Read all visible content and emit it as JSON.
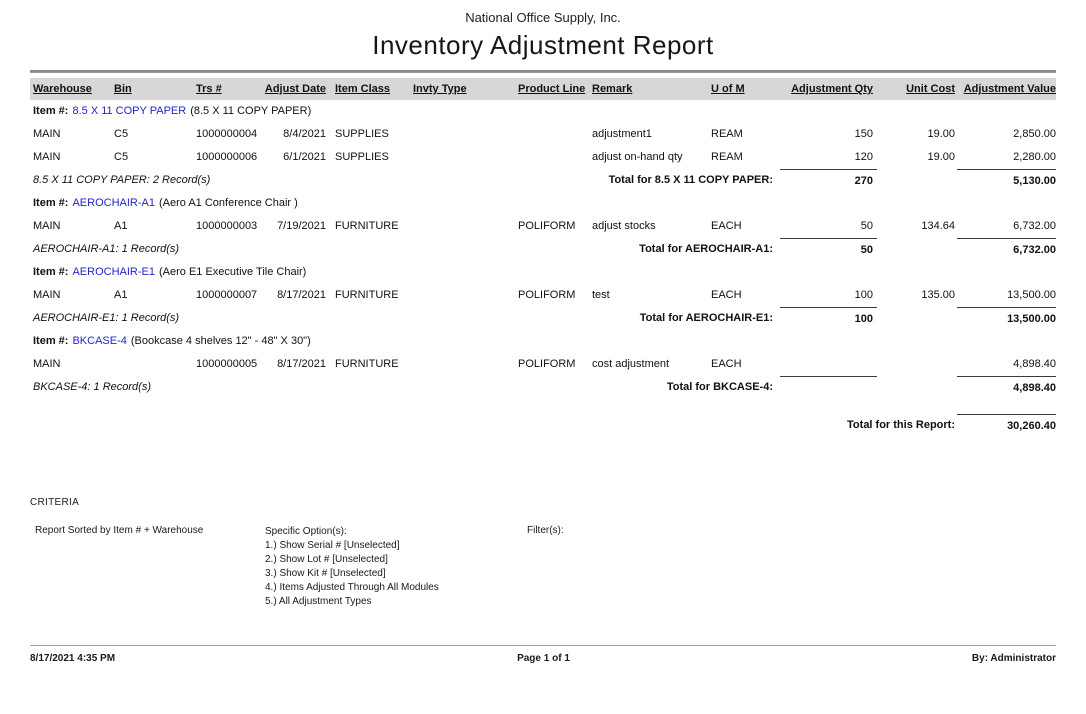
{
  "report": {
    "company": "National Office Supply, Inc.",
    "title": "Inventory Adjustment Report",
    "labels": {
      "item_label": "Item #:"
    },
    "colors": {
      "item_link_blue": "#2323CE",
      "header_band_gray": "#D7D7D7"
    },
    "columns": [
      "Warehouse",
      "Bin",
      "Trs #",
      "Adjust Date",
      "Item Class",
      "Invty Type",
      "Product Line",
      "Remark",
      "U of M",
      "Adjustment Qty",
      "Unit Cost",
      "Adjustment Value"
    ],
    "groups": [
      {
        "item_code": "8.5 X 11 COPY PAPER",
        "item_desc": "(8.5 X 11 COPY PAPER)",
        "rows": [
          {
            "warehouse": "MAIN",
            "bin": "C5",
            "trs": "1000000004",
            "adjust_date": "8/4/2021",
            "item_class": "SUPPLIES",
            "invty_type": "",
            "product_line": "",
            "remark": "adjustment1",
            "uom": "REAM",
            "qty": "150",
            "unit_cost": "19.00",
            "value": "2,850.00"
          },
          {
            "warehouse": "MAIN",
            "bin": "C5",
            "trs": "1000000006",
            "adjust_date": "6/1/2021",
            "item_class": "SUPPLIES",
            "invty_type": "",
            "product_line": "",
            "remark": "adjust on-hand qty",
            "uom": "REAM",
            "qty": "120",
            "unit_cost": "19.00",
            "value": "2,280.00"
          }
        ],
        "records_text": "8.5 X 11 COPY PAPER: 2 Record(s)",
        "total_label": "Total for 8.5 X 11 COPY PAPER:",
        "total_qty": "270",
        "total_value": "5,130.00"
      },
      {
        "item_code": "AEROCHAIR-A1",
        "item_desc": "(Aero A1 Conference Chair )",
        "rows": [
          {
            "warehouse": "MAIN",
            "bin": "A1",
            "trs": "1000000003",
            "adjust_date": "7/19/2021",
            "item_class": "FURNITURE",
            "invty_type": "",
            "product_line": "POLIFORM",
            "remark": "adjust stocks",
            "uom": "EACH",
            "qty": "50",
            "unit_cost": "134.64",
            "value": "6,732.00"
          }
        ],
        "records_text": "AEROCHAIR-A1: 1 Record(s)",
        "total_label": "Total for AEROCHAIR-A1:",
        "total_qty": "50",
        "total_value": "6,732.00"
      },
      {
        "item_code": "AEROCHAIR-E1",
        "item_desc": "(Aero E1 Executive Tile Chair)",
        "rows": [
          {
            "warehouse": "MAIN",
            "bin": "A1",
            "trs": "1000000007",
            "adjust_date": "8/17/2021",
            "item_class": "FURNITURE",
            "invty_type": "",
            "product_line": "POLIFORM",
            "remark": "test",
            "uom": "EACH",
            "qty": "100",
            "unit_cost": "135.00",
            "value": "13,500.00"
          }
        ],
        "records_text": "AEROCHAIR-E1: 1 Record(s)",
        "total_label": "Total for AEROCHAIR-E1:",
        "total_qty": "100",
        "total_value": "13,500.00"
      },
      {
        "item_code": "BKCASE-4",
        "item_desc": "(Bookcase 4 shelves 12\" - 48\" X 30\")",
        "rows": [
          {
            "warehouse": "MAIN",
            "bin": "",
            "trs": "1000000005",
            "adjust_date": "8/17/2021",
            "item_class": "FURNITURE",
            "invty_type": "",
            "product_line": "POLIFORM",
            "remark": "cost adjustment",
            "uom": "EACH",
            "qty": "",
            "unit_cost": "",
            "value": "4,898.40"
          }
        ],
        "records_text": "BKCASE-4: 1 Record(s)",
        "total_label": "Total for BKCASE-4:",
        "total_qty": "",
        "total_value": "4,898.40"
      }
    ],
    "report_total_label": "Total for this Report:",
    "report_total_value": "30,260.40",
    "criteria": {
      "heading": "CRITERIA",
      "sort": "Report Sorted by Item # + Warehouse",
      "options_heading": "Specific Option(s):",
      "options": [
        "1.) Show Serial # [Unselected]",
        "2.) Show Lot # [Unselected]",
        "3.) Show Kit # [Unselected]",
        "4.) Items Adjusted Through All Modules",
        "5.) All Adjustment Types"
      ],
      "filters_heading": "Filter(s):"
    },
    "footer": {
      "datetime": "8/17/2021 4:35 PM",
      "page": "Page 1 of 1",
      "by": "By: Administrator"
    }
  }
}
